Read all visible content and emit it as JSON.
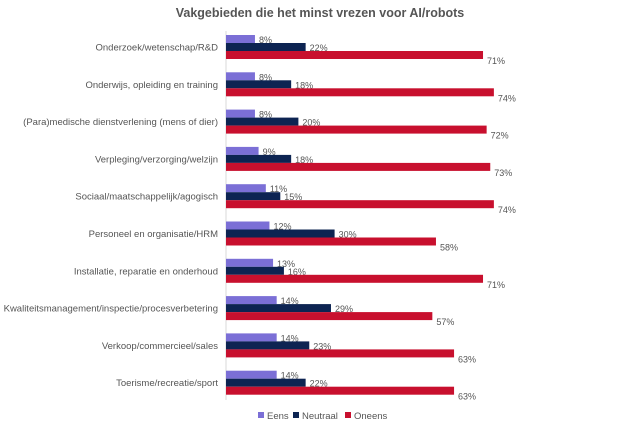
{
  "chart_data": {
    "type": "bar",
    "orientation": "horizontal",
    "title": "Vakgebieden die het minst vrezen voor AI/robots",
    "xlabel": "",
    "ylabel": "",
    "xlim": [
      0,
      100
    ],
    "grid": false,
    "legend_position": "bottom",
    "categories": [
      "Onderzoek/wetenschap/R&D",
      "Onderwijs, opleiding en training",
      "(Para)medische dienstverlening (mens of dier)",
      "Verpleging/verzorging/welzijn",
      "Sociaal/maatschappelijk/agogisch",
      "Personeel en organisatie/HRM",
      "Installatie, reparatie en onderhoud",
      "Kwaliteitsmanagement/inspectie/procesverbetering",
      "Verkoop/commercieel/sales",
      "Toerisme/recreatie/sport"
    ],
    "series": [
      {
        "name": "Eens",
        "color": "#7b6fd6",
        "values": [
          8,
          8,
          8,
          9,
          11,
          12,
          13,
          14,
          14,
          14
        ]
      },
      {
        "name": "Neutraal",
        "color": "#0d2452",
        "values": [
          22,
          18,
          20,
          18,
          15,
          30,
          16,
          29,
          23,
          22
        ]
      },
      {
        "name": "Oneens",
        "color": "#c8102e",
        "values": [
          71,
          74,
          72,
          73,
          74,
          58,
          71,
          57,
          63,
          63
        ]
      }
    ],
    "value_suffix": "%"
  }
}
